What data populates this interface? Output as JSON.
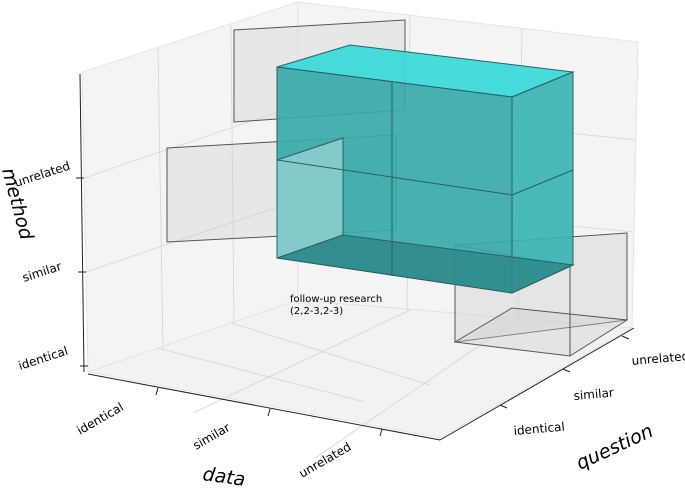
{
  "axes": {
    "x": {
      "label": "data",
      "ticks": [
        "identical",
        "similar",
        "unrelated"
      ]
    },
    "y": {
      "label": "question",
      "ticks": [
        "identical",
        "similar",
        "unrelated"
      ]
    },
    "z": {
      "label": "method",
      "ticks": [
        "identical",
        "similar",
        "unrelated"
      ]
    }
  },
  "annotation": {
    "line1": "follow-up research",
    "line2": "(2,2-3,2-3)"
  },
  "colors": {
    "highlight": "#2ec4c4",
    "outline_box": "#d9d9d9",
    "pane": "#f2f2f2",
    "grid": "#d0d0d0"
  }
}
